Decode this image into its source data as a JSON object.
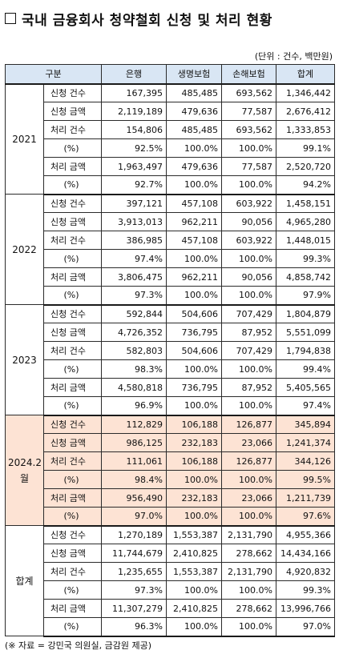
{
  "title": "국내 금융회사 청약철회 신청 및 처리 현황",
  "unit_note": "(단위 : 건수, 백만원)",
  "headers": [
    "구분",
    "은행",
    "생명보험",
    "손해보험",
    "합계"
  ],
  "groups": [
    {
      "year": "2021",
      "highlight": false,
      "rows": [
        {
          "label": "신청 건수",
          "values": [
            "167,395",
            "485,485",
            "693,562",
            "1,346,442"
          ]
        },
        {
          "label": "신청 금액",
          "values": [
            "2,119,189",
            "479,636",
            "77,587",
            "2,676,412"
          ]
        },
        {
          "label": "처리 건수",
          "values": [
            "154,806",
            "485,485",
            "693,562",
            "1,333,853"
          ]
        },
        {
          "label": "(%)",
          "values": [
            "92.5%",
            "100.0%",
            "100.0%",
            "99.1%"
          ]
        },
        {
          "label": "처리 금액",
          "values": [
            "1,963,497",
            "479,636",
            "77,587",
            "2,520,720"
          ]
        },
        {
          "label": "(%)",
          "values": [
            "92.7%",
            "100.0%",
            "100.0%",
            "94.2%"
          ]
        }
      ]
    },
    {
      "year": "2022",
      "highlight": false,
      "rows": [
        {
          "label": "신청 건수",
          "values": [
            "397,121",
            "457,108",
            "603,922",
            "1,458,151"
          ]
        },
        {
          "label": "신청 금액",
          "values": [
            "3,913,013",
            "962,211",
            "90,056",
            "4,965,280"
          ]
        },
        {
          "label": "처리 건수",
          "values": [
            "386,985",
            "457,108",
            "603,922",
            "1,448,015"
          ]
        },
        {
          "label": "(%)",
          "values": [
            "97.4%",
            "100.0%",
            "100.0%",
            "99.3%"
          ]
        },
        {
          "label": "처리 금액",
          "values": [
            "3,806,475",
            "962,211",
            "90,056",
            "4,858,742"
          ]
        },
        {
          "label": "(%)",
          "values": [
            "97.3%",
            "100.0%",
            "100.0%",
            "97.9%"
          ]
        }
      ]
    },
    {
      "year": "2023",
      "highlight": false,
      "rows": [
        {
          "label": "신청 건수",
          "values": [
            "592,844",
            "504,606",
            "707,429",
            "1,804,879"
          ]
        },
        {
          "label": "신청 금액",
          "values": [
            "4,726,352",
            "736,795",
            "87,952",
            "5,551,099"
          ]
        },
        {
          "label": "처리 건수",
          "values": [
            "582,803",
            "504,606",
            "707,429",
            "1,794,838"
          ]
        },
        {
          "label": "(%)",
          "values": [
            "98.3%",
            "100.0%",
            "100.0%",
            "99.4%"
          ]
        },
        {
          "label": "처리 금액",
          "values": [
            "4,580,818",
            "736,795",
            "87,952",
            "5,405,565"
          ]
        },
        {
          "label": "(%)",
          "values": [
            "96.9%",
            "100.0%",
            "100.0%",
            "97.4%"
          ]
        }
      ]
    },
    {
      "year": "2024.2월",
      "highlight": true,
      "rows": [
        {
          "label": "신청 건수",
          "values": [
            "112,829",
            "106,188",
            "126,877",
            "345,894"
          ]
        },
        {
          "label": "신청 금액",
          "values": [
            "986,125",
            "232,183",
            "23,066",
            "1,241,374"
          ]
        },
        {
          "label": "처리 건수",
          "values": [
            "111,061",
            "106,188",
            "126,877",
            "344,126"
          ]
        },
        {
          "label": "(%)",
          "values": [
            "98.4%",
            "100.0%",
            "100.0%",
            "99.5%"
          ]
        },
        {
          "label": "처리 금액",
          "values": [
            "956,490",
            "232,183",
            "23,066",
            "1,211,739"
          ]
        },
        {
          "label": "(%)",
          "values": [
            "97.0%",
            "100.0%",
            "100.0%",
            "97.6%"
          ]
        }
      ]
    },
    {
      "year": "합계",
      "highlight": false,
      "rows": [
        {
          "label": "신청 건수",
          "values": [
            "1,270,189",
            "1,553,387",
            "2,131,790",
            "4,955,366"
          ]
        },
        {
          "label": "신청 금액",
          "values": [
            "11,744,679",
            "2,410,825",
            "278,662",
            "14,434,166"
          ]
        },
        {
          "label": "처리 건수",
          "values": [
            "1,235,655",
            "1,553,387",
            "2,131,790",
            "4,920,832"
          ]
        },
        {
          "label": "(%)",
          "values": [
            "97.3%",
            "100.0%",
            "100.0%",
            "99.3%"
          ]
        },
        {
          "label": "처리 금액",
          "values": [
            "11,307,279",
            "2,410,825",
            "278,662",
            "13,996,766"
          ]
        },
        {
          "label": "(%)",
          "values": [
            "96.3%",
            "100.0%",
            "100.0%",
            "97.0%"
          ]
        }
      ]
    }
  ],
  "source": "(※ 자료 = 강민국 의원실, 금감원 제공)",
  "colors": {
    "header_bg": "#d9e6f4",
    "highlight_bg": "#fde3d4",
    "border": "#2b2b2b"
  }
}
